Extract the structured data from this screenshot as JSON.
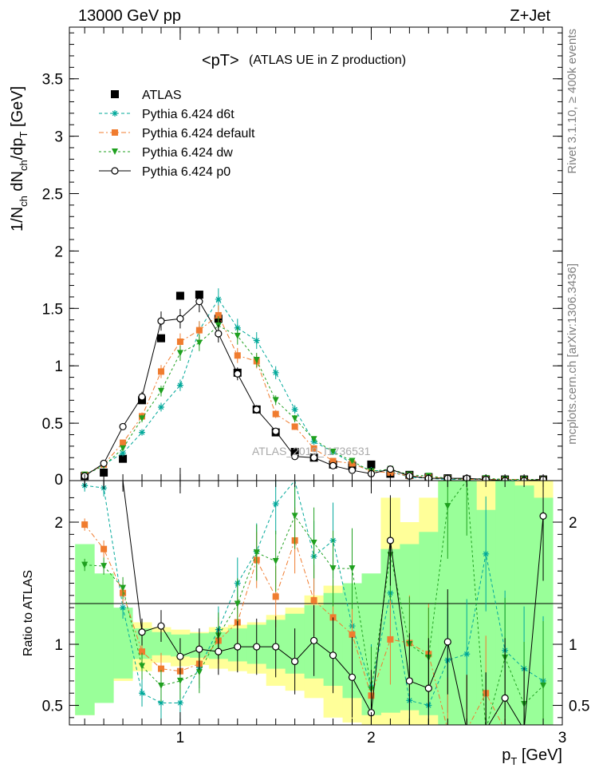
{
  "header": {
    "energy_label": "13000 GeV pp",
    "process_label": "Z+Jet"
  },
  "side_labels": {
    "rivet": "Rivet 3.1.10, ≥ 400k events",
    "mcplots": "mcplots.cern.ch [arXiv:1306.3436]"
  },
  "chart_data": {
    "type": "scatter",
    "title": "<pT>",
    "subtitle": "(ATLAS UE in Z production)",
    "watermark": "ATLAS_2019_I1736531",
    "xlabel": "p_T [GeV]",
    "ylabel": "1/N_ch dN_ch/dp_T [GeV]",
    "ratio_ylabel": "Ratio to ATLAS",
    "xlim": [
      0.42,
      3.0
    ],
    "ylim": [
      0,
      3.95
    ],
    "ratio_ylim": [
      0.34,
      2.34
    ],
    "x_ticks": [
      1,
      2,
      3
    ],
    "y_ticks": [
      0.5,
      1,
      1.5,
      2,
      2.5,
      3,
      3.5
    ],
    "y_tick_labels": [
      "0.5",
      "1",
      "1.5",
      "2",
      "2.5",
      "3",
      "3.5"
    ],
    "y_zero_label": "0",
    "ratio_y_ticks": [
      0.5,
      1,
      2
    ],
    "legend_position": "top-left",
    "x": [
      0.5,
      0.6,
      0.7,
      0.8,
      0.9,
      1.0,
      1.1,
      1.2,
      1.3,
      1.4,
      1.5,
      1.6,
      1.7,
      1.8,
      1.9,
      2.0,
      2.1,
      2.2,
      2.3,
      2.4,
      2.5,
      2.6,
      2.7,
      2.8,
      2.9
    ],
    "bands": {
      "yellow": [
        [
          0.42,
          1.7
        ],
        [
          0.6,
          1.45
        ],
        [
          0.7,
          1.2
        ],
        [
          0.78,
          1.18
        ],
        [
          0.85,
          1.14
        ],
        [
          0.82,
          1.12
        ],
        [
          0.83,
          1.1
        ],
        [
          0.8,
          1.14
        ],
        [
          0.78,
          1.16
        ],
        [
          0.76,
          1.18
        ],
        [
          0.66,
          1.24
        ],
        [
          0.62,
          1.3
        ],
        [
          0.56,
          1.4
        ],
        [
          0.4,
          1.48
        ],
        [
          0.36,
          1.5
        ],
        [
          0.3,
          1.56
        ],
        [
          0.3,
          2.2
        ],
        [
          0.3,
          2.0
        ],
        [
          0.3,
          2.2
        ],
        [
          0.3,
          2.34
        ],
        [
          0.3,
          2.34
        ],
        [
          0.3,
          2.34
        ],
        [
          0.3,
          2.34
        ],
        [
          0.3,
          2.34
        ],
        [
          0.3,
          2.34
        ]
      ],
      "green": [
        [
          0.42,
          1.82
        ],
        [
          0.52,
          1.58
        ],
        [
          0.72,
          1.3
        ],
        [
          0.88,
          1.13
        ],
        [
          0.91,
          1.1
        ],
        [
          0.9,
          1.08
        ],
        [
          0.89,
          1.09
        ],
        [
          0.88,
          1.1
        ],
        [
          0.86,
          1.13
        ],
        [
          0.84,
          1.16
        ],
        [
          0.8,
          1.2
        ],
        [
          0.76,
          1.25
        ],
        [
          0.72,
          1.32
        ],
        [
          0.66,
          1.42
        ],
        [
          0.56,
          1.5
        ],
        [
          0.42,
          1.58
        ],
        [
          0.44,
          1.78
        ],
        [
          0.46,
          1.82
        ],
        [
          0.42,
          1.92
        ],
        [
          0.3,
          2.34
        ],
        [
          0.3,
          2.34
        ],
        [
          0.3,
          2.1
        ],
        [
          0.3,
          2.34
        ],
        [
          0.3,
          2.3
        ],
        [
          0.3,
          2.2
        ]
      ]
    },
    "series": [
      {
        "name": "ATLAS",
        "color": "#000000",
        "marker": "filled-square",
        "values": [
          0.04,
          0.07,
          0.19,
          0.7,
          1.24,
          1.61,
          1.62,
          1.41,
          0.94,
          0.62,
          0.42,
          0.25,
          0.2,
          0.14,
          0.13,
          0.14,
          0.06,
          0.05,
          0.03,
          0.02,
          0.01,
          0.01,
          0.01,
          0.01,
          0.01
        ],
        "ratio": []
      },
      {
        "name": "Pythia 6.424 d6t",
        "color": "#00a89a",
        "marker": "asterisk",
        "values": [
          0.05,
          0.14,
          0.24,
          0.42,
          0.64,
          0.83,
          1.31,
          1.58,
          1.33,
          1.22,
          0.94,
          0.62,
          0.34,
          0.25,
          0.15,
          0.09,
          0.08,
          0.03,
          0.02,
          0.01,
          0.01,
          0.01,
          0.01,
          0.0,
          0.0
        ],
        "ratio": [
          2.3,
          2.28,
          1.3,
          0.6,
          0.52,
          0.52,
          0.81,
          1.12,
          1.5,
          1.76,
          2.15,
          2.34,
          1.72,
          1.85,
          1.15,
          0.65,
          1.42,
          0.54,
          0.5,
          0.87,
          0.92,
          1.74,
          0.95,
          0.8,
          0.7
        ]
      },
      {
        "name": "Pythia 6.424 default",
        "color": "#f07c2f",
        "marker": "filled-square",
        "values": [
          0.05,
          0.14,
          0.33,
          0.56,
          0.95,
          1.21,
          1.31,
          1.44,
          1.09,
          1.04,
          0.58,
          0.47,
          0.28,
          0.17,
          0.15,
          0.08,
          0.07,
          0.04,
          0.03,
          0.02,
          0.01,
          0.01,
          0.01,
          0.01,
          0.01
        ],
        "ratio": [
          1.98,
          1.78,
          1.42,
          0.94,
          0.8,
          0.78,
          0.84,
          1.03,
          1.18,
          1.69,
          1.39,
          1.85,
          1.36,
          1.22,
          1.08,
          0.58,
          1.04,
          1.01,
          0.92,
          0.3,
          0.3,
          0.6,
          0.3,
          0.3,
          0.3
        ]
      },
      {
        "name": "Pythia 6.424 dw",
        "color": "#1fa01f",
        "marker": "filled-triangle-down",
        "values": [
          0.05,
          0.13,
          0.28,
          0.54,
          0.78,
          1.11,
          1.2,
          1.35,
          1.26,
          1.05,
          0.7,
          0.54,
          0.36,
          0.25,
          0.17,
          0.08,
          0.1,
          0.05,
          0.04,
          0.02,
          0.01,
          0.02,
          0.01,
          0.01,
          0.01
        ],
        "ratio": [
          1.65,
          1.64,
          1.46,
          0.82,
          0.66,
          0.7,
          0.77,
          1.07,
          1.33,
          1.75,
          1.68,
          2.05,
          1.83,
          1.62,
          1.62,
          0.63,
          1.73,
          1.0,
          0.89,
          2.13,
          2.34,
          0.3,
          0.89,
          0.51,
          0.66
        ]
      },
      {
        "name": "Pythia 6.424 p0",
        "color": "#000000",
        "marker": "open-circle",
        "values": [
          0.04,
          0.15,
          0.47,
          0.73,
          1.39,
          1.41,
          1.56,
          1.28,
          0.93,
          0.62,
          0.43,
          0.21,
          0.2,
          0.13,
          0.09,
          0.06,
          0.1,
          0.04,
          0.02,
          0.02,
          0.02,
          0.01,
          0.0,
          0.0,
          0.01
        ],
        "ratio": [
          2.34,
          2.34,
          2.34,
          1.1,
          1.15,
          0.9,
          0.96,
          0.94,
          0.98,
          0.98,
          0.98,
          0.86,
          1.03,
          0.91,
          0.73,
          0.44,
          1.85,
          0.7,
          0.64,
          1.02,
          0.3,
          0.3,
          0.56,
          0.3,
          2.05
        ]
      }
    ]
  }
}
